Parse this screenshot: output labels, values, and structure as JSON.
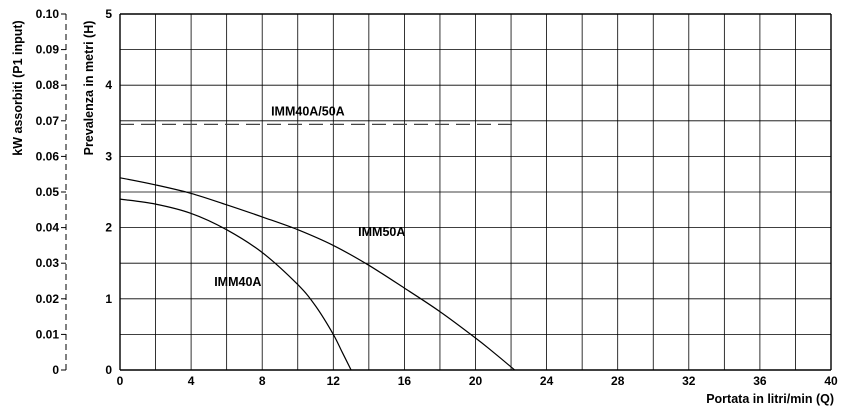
{
  "chart_data": {
    "type": "line",
    "xlabel": "Portata in litri/min (Q)",
    "ylabel": "Prevalenza in metri (H)",
    "y2label": "kW assorbiti (P1 input)",
    "xlim": [
      0,
      40
    ],
    "ylim": [
      0,
      5
    ],
    "y2lim": [
      0,
      0.1
    ],
    "x_ticks": [
      "0",
      "4",
      "8",
      "12",
      "16",
      "20",
      "24",
      "28",
      "32",
      "36",
      "40"
    ],
    "y_ticks": [
      "0",
      "1",
      "2",
      "3",
      "4",
      "5"
    ],
    "y2_ticks": [
      "0",
      "0.01",
      "0.02",
      "0.03",
      "0.04",
      "0.05",
      "0.06",
      "0.07",
      "0.08",
      "0.09",
      "0.10"
    ],
    "grid": true,
    "series": [
      {
        "name": "IMM40A",
        "axis": "H",
        "x": [
          0,
          2,
          4,
          6,
          8,
          10,
          11,
          12,
          12.5,
          13
        ],
        "y": [
          2.4,
          2.33,
          2.2,
          1.97,
          1.65,
          1.2,
          0.9,
          0.5,
          0.25,
          0
        ]
      },
      {
        "name": "IMM50A",
        "axis": "H",
        "x": [
          0,
          2,
          4,
          6,
          8,
          10,
          12,
          14,
          16,
          18,
          20,
          21,
          22.2
        ],
        "y": [
          2.7,
          2.6,
          2.48,
          2.32,
          2.15,
          1.97,
          1.75,
          1.47,
          1.15,
          0.82,
          0.45,
          0.25,
          0
        ]
      },
      {
        "name": "IMM40A/50A",
        "axis": "P1",
        "style": "dashed",
        "x": [
          0,
          22.2
        ],
        "y": [
          0.069,
          0.069
        ]
      }
    ],
    "annotations": [
      {
        "text": "IMM40A",
        "series": "IMM40A"
      },
      {
        "text": "IMM50A",
        "series": "IMM50A"
      },
      {
        "text": "IMM40A/50A",
        "series": "IMM40A/50A"
      }
    ]
  }
}
